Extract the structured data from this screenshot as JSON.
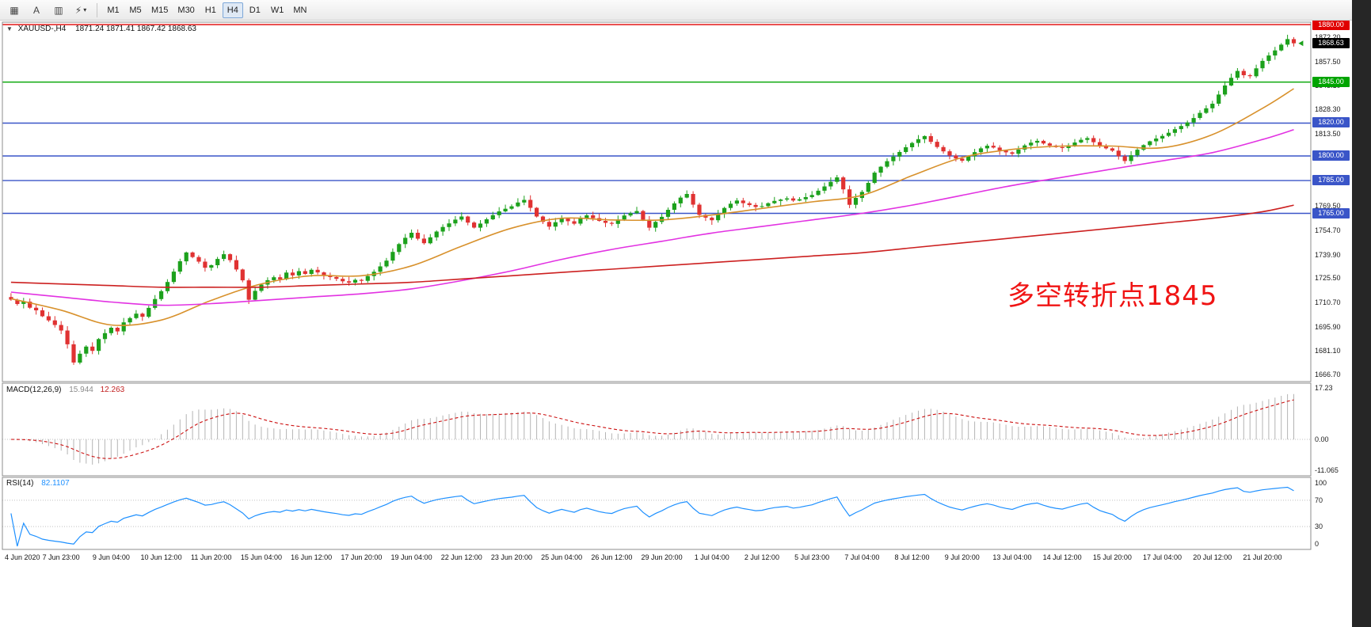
{
  "toolbar": {
    "left_buttons": [
      {
        "name": "chart-grid",
        "glyph": "▦"
      },
      {
        "name": "cursor-tool",
        "glyph": "A"
      },
      {
        "name": "templates",
        "glyph": "▥"
      },
      {
        "name": "quick-trade",
        "glyph": "⚡"
      }
    ],
    "dropdown_caret": "▾",
    "timeframes": [
      "M1",
      "M5",
      "M15",
      "M30",
      "H1",
      "H4",
      "D1",
      "W1",
      "MN"
    ],
    "active_timeframe": "H4"
  },
  "chart": {
    "menu_icon": "▼",
    "symbol_period": "XAUUSD-,H4",
    "ohlc": "1871.24 1871.41 1867.42 1868.63"
  },
  "chart_data": {
    "type": "candlestick",
    "symbol": "XAUUSD-",
    "period": "H4",
    "colors": {
      "up": "#1ca11c",
      "down": "#e03232",
      "ma_fast": "#d8912c",
      "ma_mid": "#e232e2",
      "ma_slow": "#cc2020",
      "macd_hist": "#b4b4b4",
      "macd_signal": "#cc1111",
      "rsi_line": "#1e90ff",
      "level_blue": "#3a55c8",
      "level_green": "#00a400",
      "level_red": "#e00000"
    },
    "price_axis": {
      "min": 1662.5,
      "max": 1881.5,
      "ticks": [
        "1872.20",
        "1857.50",
        "1843.10",
        "1828.30",
        "1813.50",
        "1769.50",
        "1754.70",
        "1739.90",
        "1725.50",
        "1710.70",
        "1695.90",
        "1681.10",
        "1666.70"
      ]
    },
    "current_price": "1868.63",
    "levels": [
      {
        "price": 1880.0,
        "label": "1880.00",
        "color_key": "level_red"
      },
      {
        "price": 1845.0,
        "label": "1845.00",
        "color_key": "level_green"
      },
      {
        "price": 1820.0,
        "label": "1820.00",
        "color_key": "level_blue"
      },
      {
        "price": 1800.0,
        "label": "1800.00",
        "color_key": "level_blue"
      },
      {
        "price": 1785.0,
        "label": "1785.00",
        "color_key": "level_blue"
      },
      {
        "price": 1765.0,
        "label": "1765.00",
        "color_key": "level_blue"
      }
    ],
    "candles": {
      "open_first": 1714.0,
      "closes": [
        1712.4,
        1709.8,
        1711.2,
        1707.5,
        1705.9,
        1702.3,
        1699.8,
        1697.0,
        1693.6,
        1685.2,
        1674.1,
        1679.5,
        1683.8,
        1681.2,
        1688.4,
        1692.0,
        1695.3,
        1693.1,
        1698.6,
        1701.2,
        1703.9,
        1702.0,
        1707.4,
        1712.8,
        1717.6,
        1723.2,
        1729.5,
        1735.8,
        1741.2,
        1738.4,
        1735.6,
        1731.9,
        1733.4,
        1737.2,
        1740.1,
        1736.5,
        1730.8,
        1724.2,
        1712.4,
        1717.8,
        1721.6,
        1724.3,
        1726.1,
        1724.8,
        1728.9,
        1727.2,
        1729.8,
        1728.1,
        1730.6,
        1729.0,
        1727.4,
        1726.2,
        1725.1,
        1723.6,
        1722.8,
        1724.5,
        1723.9,
        1726.8,
        1729.4,
        1732.7,
        1736.2,
        1741.5,
        1746.3,
        1750.1,
        1753.2,
        1749.6,
        1746.8,
        1750.4,
        1753.9,
        1756.7,
        1758.9,
        1761.2,
        1763.1,
        1759.4,
        1756.3,
        1758.8,
        1761.4,
        1763.9,
        1766.2,
        1767.8,
        1769.3,
        1771.6,
        1773.2,
        1768.4,
        1763.1,
        1759.8,
        1756.9,
        1759.6,
        1761.8,
        1760.2,
        1758.7,
        1761.9,
        1763.8,
        1762.1,
        1760.4,
        1759.2,
        1758.6,
        1761.3,
        1763.7,
        1765.1,
        1766.4,
        1761.2,
        1756.3,
        1759.8,
        1762.9,
        1767.2,
        1771.1,
        1774.6,
        1776.8,
        1770.3,
        1764.1,
        1762.4,
        1760.8,
        1764.6,
        1768.3,
        1770.9,
        1772.8,
        1771.2,
        1770.1,
        1768.9,
        1769.4,
        1771.2,
        1772.6,
        1773.4,
        1774.1,
        1772.8,
        1773.6,
        1774.9,
        1776.2,
        1778.8,
        1781.4,
        1784.2,
        1786.9,
        1779.6,
        1770.2,
        1774.4,
        1778.1,
        1783.6,
        1789.8,
        1793.4,
        1796.8,
        1799.6,
        1802.4,
        1805.3,
        1807.9,
        1810.2,
        1812.1,
        1808.6,
        1805.4,
        1802.8,
        1800.2,
        1798.4,
        1797.1,
        1799.8,
        1802.3,
        1804.6,
        1806.2,
        1805.1,
        1803.4,
        1802.2,
        1801.3,
        1803.9,
        1806.4,
        1808.1,
        1809.2,
        1807.6,
        1806.3,
        1805.4,
        1804.8,
        1806.5,
        1808.2,
        1809.8,
        1810.9,
        1808.4,
        1806.1,
        1804.6,
        1803.2,
        1799.8,
        1796.9,
        1800.4,
        1803.8,
        1806.6,
        1808.9,
        1810.6,
        1812.2,
        1814.1,
        1816.3,
        1818.2,
        1820.4,
        1823.1,
        1826.2,
        1829.0,
        1831.8,
        1837.4,
        1842.9,
        1847.6,
        1851.8,
        1849.2,
        1848.6,
        1853.4,
        1857.9,
        1861.2,
        1864.3,
        1867.8,
        1871.2,
        1868.63
      ]
    },
    "moving_averages": [
      {
        "name": "ma-fast",
        "color_key": "ma_fast",
        "anchor_step": 8,
        "values": [
          1713,
          1706,
          1697,
          1700,
          1712,
          1722,
          1727,
          1727,
          1733,
          1745,
          1756,
          1762,
          1761,
          1761,
          1764,
          1768,
          1772,
          1776,
          1788,
          1799,
          1804,
          1806,
          1806,
          1805,
          1813,
          1829,
          1841
        ]
      },
      {
        "name": "ma-mid",
        "color_key": "ma_mid",
        "anchor_step": 8,
        "values": [
          1717,
          1714,
          1711,
          1709,
          1710,
          1712,
          1714,
          1716,
          1719,
          1724,
          1730,
          1737,
          1743,
          1748,
          1753,
          1757,
          1761,
          1765,
          1770,
          1776,
          1782,
          1787,
          1792,
          1797,
          1802,
          1810,
          1816
        ]
      },
      {
        "name": "ma-slow",
        "color_key": "ma_slow",
        "anchor_step": 8,
        "values": [
          1723,
          1722,
          1721,
          1720,
          1720,
          1720,
          1721,
          1722,
          1723,
          1725,
          1727,
          1729,
          1731,
          1733,
          1735,
          1737,
          1739,
          1741,
          1744,
          1747,
          1750,
          1753,
          1756,
          1759,
          1762,
          1766,
          1770
        ]
      }
    ],
    "macd": {
      "label": "MACD(12,26,9)",
      "value_main": "15.944",
      "value_signal": "12.263",
      "params": {
        "fast": 12,
        "slow": 26,
        "signal": 9
      },
      "axis": {
        "min": -11.065,
        "max": 17.23,
        "ticks": [
          "17.23",
          "0.00",
          "-11.065"
        ]
      }
    },
    "rsi": {
      "label": "RSI(14)",
      "value": "82.1107",
      "period": 14,
      "axis": {
        "min": 0,
        "max": 100,
        "ticks": [
          "100",
          "70",
          "30",
          "0"
        ],
        "level_lines": [
          70,
          30
        ]
      }
    },
    "time_labels": [
      "4 Jun 2020",
      "7 Jun 23:00",
      "9 Jun 04:00",
      "10 Jun 12:00",
      "11 Jun 20:00",
      "15 Jun 04:00",
      "16 Jun 12:00",
      "17 Jun 20:00",
      "19 Jun 04:00",
      "22 Jun 12:00",
      "23 Jun 20:00",
      "25 Jun 04:00",
      "26 Jun 12:00",
      "29 Jun 20:00",
      "1 Jul 04:00",
      "2 Jul 12:00",
      "5 Jul 23:00",
      "7 Jul 04:00",
      "8 Jul 12:00",
      "9 Jul 20:00",
      "13 Jul 04:00",
      "14 Jul 12:00",
      "15 Jul 20:00",
      "17 Jul 04:00",
      "20 Jul 12:00",
      "21 Jul 20:00"
    ],
    "bars_per_label": 8,
    "annotation": {
      "text": "多空转折点1845",
      "color": "#f01414"
    }
  }
}
